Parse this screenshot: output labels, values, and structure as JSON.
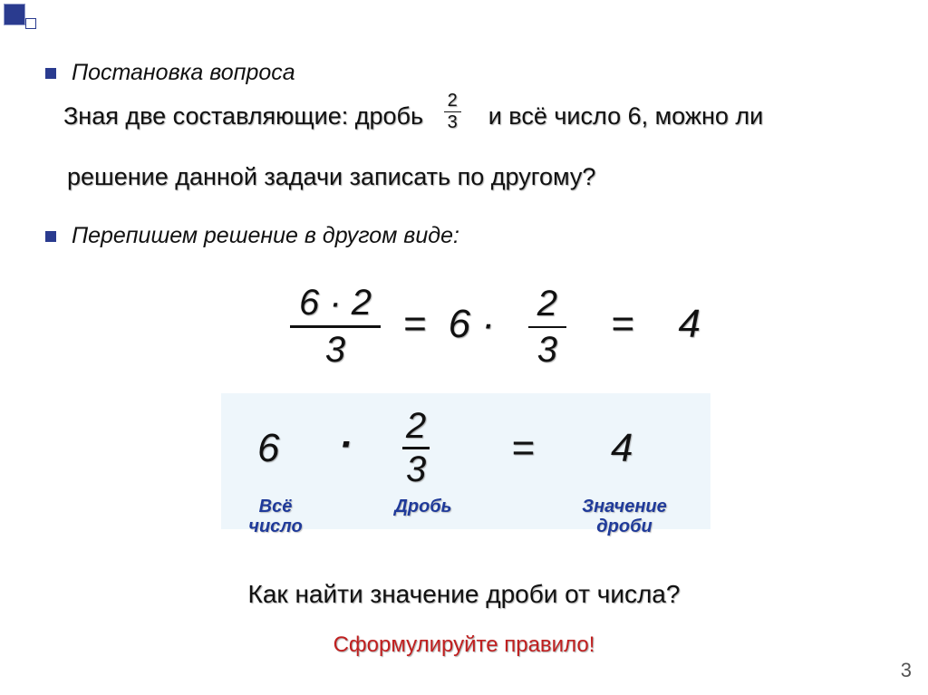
{
  "colors": {
    "accent_navy": "#2a3b8f",
    "accent_red": "#c02020",
    "box_bg": "#eef6fb",
    "text": "#111111",
    "pagenum": "#555555",
    "label_blue": "#1f3a9a"
  },
  "bullets": {
    "b1": "Постановка вопроса",
    "b2": "Перепишем решение в другом виде:"
  },
  "statement": {
    "part1": "Зная две составляющие: дробь",
    "frac_num": "2",
    "frac_den": "3",
    "part2": "и всё число 6, можно ли",
    "line2": "решение данной задачи записать по другому?"
  },
  "equation_a": {
    "lhs_num": "6 · 2",
    "lhs_den": "3",
    "eq1": "=",
    "mid_whole": "6 ·",
    "mid_frac_num": "2",
    "mid_frac_den": "3",
    "eq2": "=",
    "rhs": "4"
  },
  "equation_b": {
    "whole": "6",
    "dot": "·",
    "frac_num": "2",
    "frac_den": "3",
    "eq": "=",
    "result": "4"
  },
  "labels": {
    "whole": "Всё\nчисло",
    "frac": "Дробь",
    "value": "Значение\nдроби"
  },
  "questions": {
    "q1": "Как найти значение дроби от числа?",
    "q2": "Сформулируйте правило!"
  },
  "page_number": "3"
}
